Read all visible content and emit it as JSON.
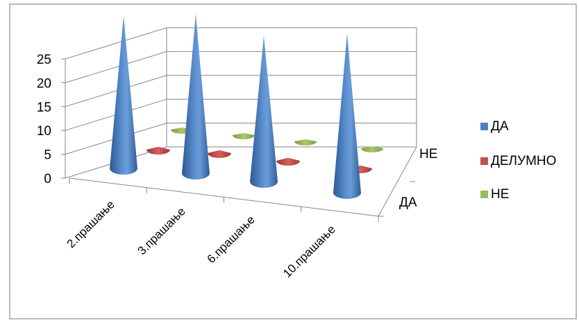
{
  "chart_data": {
    "type": "bar",
    "subtype": "3d-cone",
    "title": "",
    "xlabel": "",
    "ylabel": "",
    "categories": [
      "2.прашање",
      "3.прашање",
      "6.прашање",
      "10.прашање"
    ],
    "depth_labels": [
      "ДА",
      "НЕ"
    ],
    "series": [
      {
        "name": "ДА",
        "values": [
          22,
          23,
          21,
          23
        ],
        "color": "#4F81BD"
      },
      {
        "name": "ДЕЛУМНО",
        "values": [
          1,
          1,
          1,
          1
        ],
        "color": "#C0504D"
      },
      {
        "name": "НЕ",
        "values": [
          0.4,
          0.4,
          0.4,
          0.4
        ],
        "color": "#9BBB59"
      }
    ],
    "ylim": [
      0,
      25
    ],
    "yticks": [
      "0",
      "5",
      "10",
      "15",
      "20",
      "25"
    ],
    "grid": true,
    "legend": "right"
  }
}
